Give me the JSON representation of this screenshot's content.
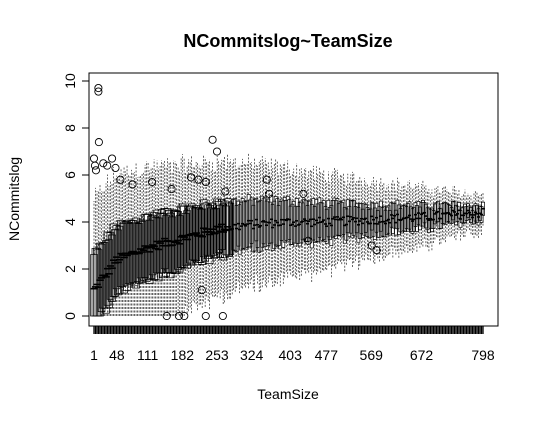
{
  "chart_data": {
    "type": "boxplot",
    "title": "NCommitslog~TeamSize",
    "xlabel": "TeamSize",
    "ylabel": "NCommitslog",
    "x_tick_labels": [
      "1",
      "48",
      "111",
      "182",
      "253",
      "324",
      "403",
      "477",
      "569",
      "672",
      "798"
    ],
    "x_tick_positions": [
      1,
      48,
      111,
      182,
      253,
      324,
      403,
      477,
      569,
      672,
      798
    ],
    "y_ticks": [
      0,
      2,
      4,
      6,
      8,
      10
    ],
    "ylim": [
      -0.2,
      10.2
    ],
    "n_categories": 260,
    "grid": false,
    "legend": "none",
    "colors": {
      "stroke": "#000000",
      "background": "#ffffff"
    },
    "box_median_trend": [
      {
        "x": 1,
        "median": 1.1
      },
      {
        "x": 48,
        "median": 2.4
      },
      {
        "x": 111,
        "median": 2.9
      },
      {
        "x": 182,
        "median": 3.3
      },
      {
        "x": 253,
        "median": 3.7
      },
      {
        "x": 324,
        "median": 3.9
      },
      {
        "x": 403,
        "median": 4.0
      },
      {
        "x": 477,
        "median": 4.0
      },
      {
        "x": 569,
        "median": 4.1
      },
      {
        "x": 672,
        "median": 4.2
      },
      {
        "x": 798,
        "median": 4.4
      }
    ],
    "outliers": [
      {
        "x": 10,
        "y": 9.7
      },
      {
        "x": 10,
        "y": 9.55
      },
      {
        "x": 11,
        "y": 7.4
      },
      {
        "x": 1,
        "y": 6.7
      },
      {
        "x": 3,
        "y": 6.4
      },
      {
        "x": 5,
        "y": 6.2
      },
      {
        "x": 20,
        "y": 6.5
      },
      {
        "x": 28,
        "y": 6.4
      },
      {
        "x": 38,
        "y": 6.7
      },
      {
        "x": 45,
        "y": 6.3
      },
      {
        "x": 55,
        "y": 5.8
      },
      {
        "x": 80,
        "y": 5.6
      },
      {
        "x": 120,
        "y": 5.7
      },
      {
        "x": 160,
        "y": 5.4
      },
      {
        "x": 200,
        "y": 5.9
      },
      {
        "x": 215,
        "y": 5.8
      },
      {
        "x": 230,
        "y": 5.7
      },
      {
        "x": 244,
        "y": 7.5
      },
      {
        "x": 253,
        "y": 7.0
      },
      {
        "x": 270,
        "y": 5.3
      },
      {
        "x": 355,
        "y": 5.8
      },
      {
        "x": 360,
        "y": 5.2
      },
      {
        "x": 430,
        "y": 5.2
      },
      {
        "x": 440,
        "y": 3.2
      },
      {
        "x": 570,
        "y": 3.0
      },
      {
        "x": 580,
        "y": 2.8
      },
      {
        "x": 222,
        "y": 1.1
      },
      {
        "x": 230,
        "y": 0.0
      },
      {
        "x": 265,
        "y": 0.0
      },
      {
        "x": 150,
        "y": 0.0
      },
      {
        "x": 175,
        "y": 0.0
      },
      {
        "x": 186,
        "y": 0.0
      }
    ]
  }
}
